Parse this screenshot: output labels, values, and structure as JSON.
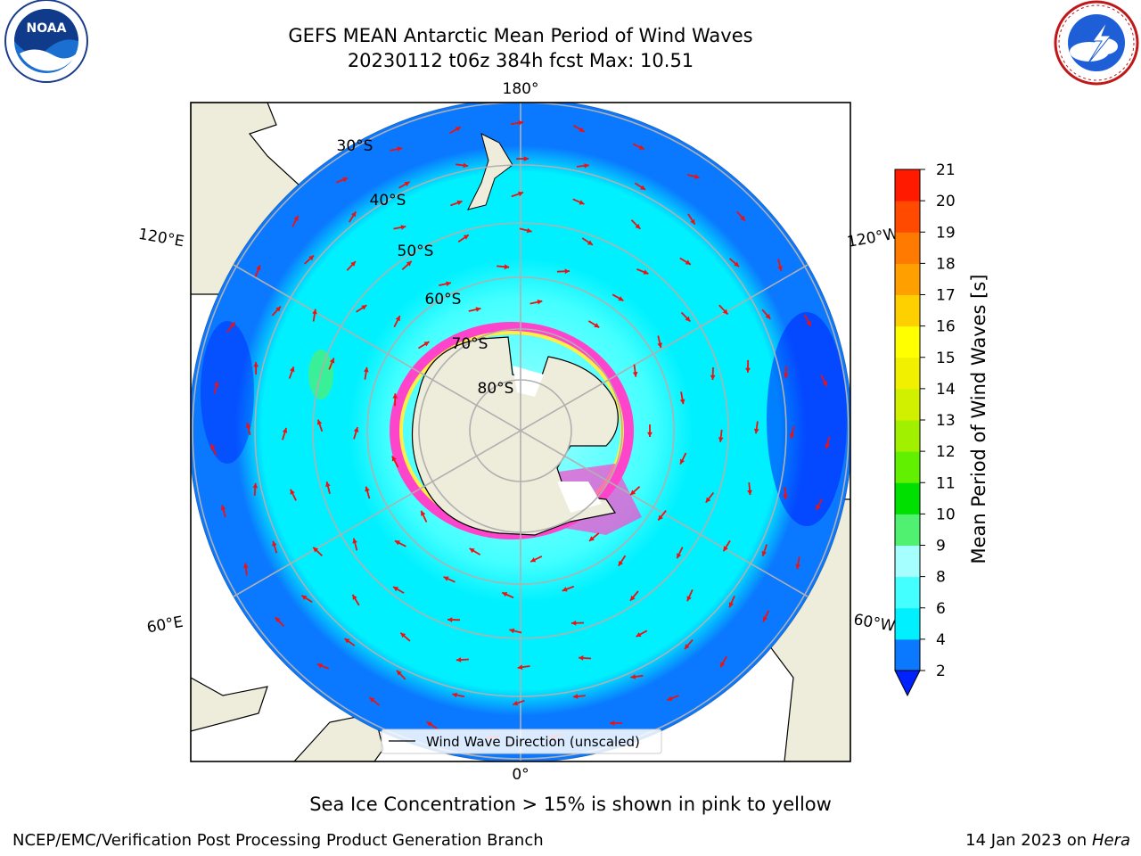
{
  "header": {
    "title_line1": "GEFS MEAN Antarctic Mean Period of Wind Waves",
    "title_line2": "20230112 t06z 384h fcst   Max: 10.51"
  },
  "logos": {
    "noaa": {
      "center_text": "NOAA",
      "ring_text": "NATIONAL OCEANIC AND ATMOSPHERIC ADMINISTRATION  U.S. DEPARTMENT OF COMMERCE"
    },
    "nws": {
      "ring_text": "NATIONAL WEATHER SERVICE"
    }
  },
  "map": {
    "longitude_labels": {
      "top": "180°",
      "bottom": "0°",
      "left_upper": "120°E",
      "left_lower": "60°E",
      "right_upper": "120°W",
      "right_lower": "60°W"
    },
    "latitude_labels": [
      "30°S",
      "40°S",
      "50°S",
      "60°S",
      "70°S",
      "80°S"
    ],
    "legend_label": "Wind Wave Direction (unscaled)",
    "colors": {
      "land": "#eeecda",
      "ice": "#ff44cc",
      "arrow": "#ee1111",
      "gridline": "#b0b0b0"
    }
  },
  "colorbar": {
    "label": "Mean Period of Wind Waves [s]",
    "ticks": [
      "2",
      "4",
      "6",
      "8",
      "9",
      "10",
      "11",
      "12",
      "13",
      "14",
      "15",
      "16",
      "17",
      "18",
      "19",
      "20",
      "21"
    ],
    "colors": [
      "#0a79ff",
      "#00f0ff",
      "#44ffff",
      "#a5ffff",
      "#50f070",
      "#00e000",
      "#60f000",
      "#a0f000",
      "#d0f000",
      "#f0f000",
      "#ffff00",
      "#ffd000",
      "#ffa000",
      "#ff7a00",
      "#ff4a00",
      "#ff1a00"
    ],
    "under_color": "#0022ff"
  },
  "footer": {
    "note": "Sea Ice Concentration > 15% is shown in pink to yellow",
    "credit_left": "NCEP/EMC/Verification Post Processing Product Generation Branch",
    "credit_right_date": "14 Jan 2023 on ",
    "credit_right_machine": "Hera"
  }
}
